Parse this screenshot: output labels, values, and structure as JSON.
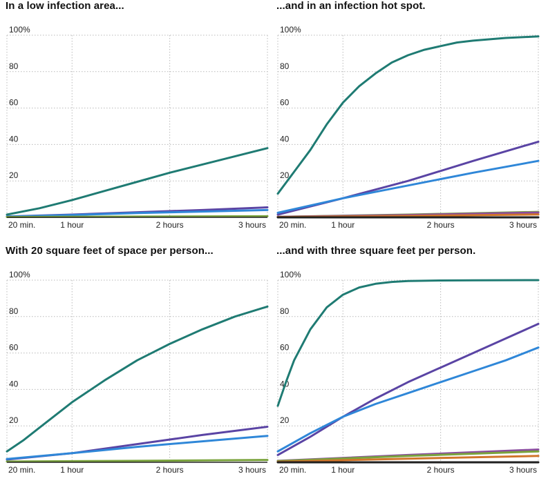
{
  "colors": {
    "teal": "#1f7b73",
    "purple": "#5a44a4",
    "blue": "#2f87d8",
    "green": "#7aa33c",
    "magenta": "#8a4d9e",
    "orange": "#d1752a",
    "black": "#1a1a1a",
    "grid": "#b8b8b8"
  },
  "chart_data": [
    {
      "type": "line",
      "title": "In a low infection area...",
      "xlabel": "",
      "ylabel": "",
      "xlim": [
        20,
        180
      ],
      "ylim": [
        0,
        100
      ],
      "x_ticks": [
        {
          "value": 20,
          "label": "20 min."
        },
        {
          "value": 60,
          "label": "1 hour"
        },
        {
          "value": 120,
          "label": "2 hours"
        },
        {
          "value": 180,
          "label": "3 hours"
        }
      ],
      "y_ticks": [
        {
          "value": 100,
          "label": "100%"
        },
        {
          "value": 80,
          "label": "80"
        },
        {
          "value": 60,
          "label": "60"
        },
        {
          "value": 40,
          "label": "40"
        },
        {
          "value": 20,
          "label": "20"
        }
      ],
      "series": [
        {
          "color": "#1f7b73",
          "x": [
            20,
            40,
            60,
            80,
            100,
            120,
            140,
            160,
            180
          ],
          "y": [
            1.5,
            5,
            9.5,
            14.5,
            19.5,
            24.5,
            29,
            33.5,
            38
          ]
        },
        {
          "color": "#5a44a4",
          "x": [
            20,
            60,
            100,
            140,
            180
          ],
          "y": [
            0.5,
            1.5,
            2.8,
            4,
            5.5
          ]
        },
        {
          "color": "#2f87d8",
          "x": [
            20,
            60,
            100,
            140,
            180
          ],
          "y": [
            0.4,
            1.3,
            2.4,
            3.2,
            4
          ]
        },
        {
          "color": "#7aa33c",
          "x": [
            20,
            100,
            180
          ],
          "y": [
            0.2,
            0.4,
            0.6
          ]
        }
      ]
    },
    {
      "type": "line",
      "title": "...and in an infection hot spot.",
      "xlabel": "",
      "ylabel": "",
      "xlim": [
        20,
        180
      ],
      "ylim": [
        0,
        100
      ],
      "x_ticks": [
        {
          "value": 20,
          "label": "20 min."
        },
        {
          "value": 60,
          "label": "1 hour"
        },
        {
          "value": 120,
          "label": "2 hours"
        },
        {
          "value": 180,
          "label": "3 hours"
        }
      ],
      "y_ticks": [
        {
          "value": 100,
          "label": "100%"
        },
        {
          "value": 80,
          "label": "80"
        },
        {
          "value": 60,
          "label": "60"
        },
        {
          "value": 40,
          "label": "40"
        },
        {
          "value": 20,
          "label": "20"
        }
      ],
      "series": [
        {
          "color": "#1f7b73",
          "x": [
            20,
            30,
            40,
            50,
            60,
            70,
            80,
            90,
            100,
            110,
            120,
            130,
            140,
            160,
            180
          ],
          "y": [
            13,
            25,
            37,
            51,
            63,
            72,
            79,
            85,
            89,
            92,
            94,
            96,
            97,
            98.5,
            99.3
          ]
        },
        {
          "color": "#5a44a4",
          "x": [
            20,
            60,
            100,
            140,
            180
          ],
          "y": [
            1.5,
            10.5,
            20,
            31,
            41.5
          ]
        },
        {
          "color": "#2f87d8",
          "x": [
            20,
            60,
            100,
            140,
            180
          ],
          "y": [
            2.5,
            10.5,
            17.5,
            24.5,
            31
          ]
        },
        {
          "color": "#7aa33c",
          "x": [
            20,
            100,
            180
          ],
          "y": [
            0.3,
            1.5,
            3
          ]
        },
        {
          "color": "#8a4d9e",
          "x": [
            20,
            100,
            180
          ],
          "y": [
            0.3,
            1.3,
            2.6
          ]
        },
        {
          "color": "#d1752a",
          "x": [
            20,
            100,
            180
          ],
          "y": [
            0.2,
            0.8,
            1.6
          ]
        },
        {
          "color": "#1a1a1a",
          "x": [
            20,
            180
          ],
          "y": [
            0,
            0
          ]
        }
      ]
    },
    {
      "type": "line",
      "title": "With 20 square feet of space per person...",
      "xlabel": "",
      "ylabel": "",
      "xlim": [
        20,
        180
      ],
      "ylim": [
        0,
        100
      ],
      "x_ticks": [
        {
          "value": 20,
          "label": "20 min."
        },
        {
          "value": 60,
          "label": "1 hour"
        },
        {
          "value": 120,
          "label": "2 hours"
        },
        {
          "value": 180,
          "label": "3 hours"
        }
      ],
      "y_ticks": [
        {
          "value": 100,
          "label": "100%"
        },
        {
          "value": 80,
          "label": "80"
        },
        {
          "value": 60,
          "label": "60"
        },
        {
          "value": 40,
          "label": "40"
        },
        {
          "value": 20,
          "label": "20"
        }
      ],
      "series": [
        {
          "color": "#1f7b73",
          "x": [
            20,
            30,
            40,
            60,
            80,
            100,
            120,
            140,
            160,
            180
          ],
          "y": [
            6,
            12,
            19,
            33,
            45,
            56,
            65,
            73,
            80,
            85.5
          ]
        },
        {
          "color": "#5a44a4",
          "x": [
            20,
            60,
            100,
            140,
            180
          ],
          "y": [
            1.5,
            5,
            10,
            15,
            19.5
          ]
        },
        {
          "color": "#2f87d8",
          "x": [
            20,
            60,
            100,
            140,
            180
          ],
          "y": [
            1.8,
            5,
            8.5,
            11.5,
            14.5
          ]
        },
        {
          "color": "#7aa33c",
          "x": [
            20,
            100,
            180
          ],
          "y": [
            0.4,
            0.8,
            1.3
          ]
        }
      ]
    },
    {
      "type": "line",
      "title": "...and with three square feet per person.",
      "xlabel": "",
      "ylabel": "",
      "xlim": [
        20,
        180
      ],
      "ylim": [
        0,
        100
      ],
      "x_ticks": [
        {
          "value": 20,
          "label": "20 min."
        },
        {
          "value": 60,
          "label": "1 hour"
        },
        {
          "value": 120,
          "label": "2 hours"
        },
        {
          "value": 180,
          "label": "3 hours"
        }
      ],
      "y_ticks": [
        {
          "value": 100,
          "label": "100%"
        },
        {
          "value": 80,
          "label": "80"
        },
        {
          "value": 60,
          "label": "60"
        },
        {
          "value": 40,
          "label": "40"
        },
        {
          "value": 20,
          "label": "20"
        }
      ],
      "series": [
        {
          "color": "#1f7b73",
          "x": [
            20,
            25,
            30,
            40,
            50,
            60,
            70,
            80,
            90,
            100,
            120,
            140,
            180
          ],
          "y": [
            31,
            44,
            56,
            73,
            85,
            92,
            96,
            98,
            99,
            99.5,
            99.8,
            99.9,
            100
          ]
        },
        {
          "color": "#5a44a4",
          "x": [
            20,
            30,
            40,
            60,
            80,
            100,
            120,
            140,
            160,
            180
          ],
          "y": [
            4,
            9,
            14,
            25,
            35,
            44,
            52,
            60,
            68,
            76
          ]
        },
        {
          "color": "#2f87d8",
          "x": [
            20,
            40,
            60,
            80,
            100,
            120,
            140,
            160,
            180
          ],
          "y": [
            6,
            16,
            25,
            32,
            38,
            44,
            50,
            56,
            63
          ]
        },
        {
          "color": "#8a4d9e",
          "x": [
            20,
            100,
            180
          ],
          "y": [
            0.8,
            4,
            7
          ]
        },
        {
          "color": "#7aa33c",
          "x": [
            20,
            100,
            180
          ],
          "y": [
            0.7,
            3.5,
            6
          ]
        },
        {
          "color": "#d1752a",
          "x": [
            20,
            100,
            180
          ],
          "y": [
            0.3,
            2,
            3.5
          ]
        },
        {
          "color": "#1a1a1a",
          "x": [
            20,
            180
          ],
          "y": [
            0,
            0
          ]
        }
      ]
    }
  ]
}
